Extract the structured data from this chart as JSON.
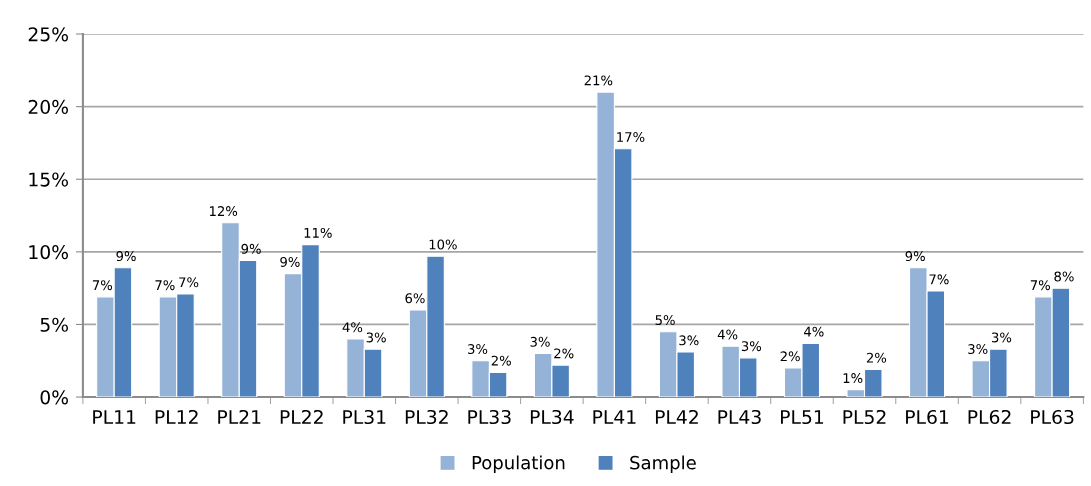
{
  "chart_data": {
    "type": "bar",
    "categories": [
      "PL11",
      "PL12",
      "PL21",
      "PL22",
      "PL31",
      "PL32",
      "PL33",
      "PL34",
      "PL41",
      "PL42",
      "PL43",
      "PL51",
      "PL52",
      "PL61",
      "PL62",
      "PL63"
    ],
    "series": [
      {
        "name": "Population",
        "color": "#95b3d7",
        "values": [
          6.9,
          6.9,
          12.0,
          8.5,
          4.0,
          6.0,
          2.5,
          3.0,
          21.0,
          4.5,
          3.5,
          2.0,
          0.5,
          8.9,
          2.5,
          6.9
        ],
        "value_labels": [
          "7%",
          "7%",
          "12%",
          "9%",
          "4%",
          "6%",
          "3%",
          "3%",
          "21%",
          "5%",
          "4%",
          "2%",
          "1%",
          "9%",
          "3%",
          "7%"
        ]
      },
      {
        "name": "Sample",
        "color": "#4f81bd",
        "values": [
          8.9,
          7.1,
          9.4,
          10.5,
          3.3,
          9.7,
          1.7,
          2.2,
          17.1,
          3.1,
          2.7,
          3.7,
          1.9,
          7.3,
          3.3,
          7.5
        ],
        "value_labels": [
          "9%",
          "7%",
          "9%",
          "11%",
          "3%",
          "10%",
          "2%",
          "2%",
          "17%",
          "3%",
          "3%",
          "4%",
          "2%",
          "7%",
          "3%",
          "8%"
        ]
      }
    ],
    "ylim": [
      0,
      25
    ],
    "yticks": [
      {
        "value": 0,
        "label": "0%"
      },
      {
        "value": 5,
        "label": "5%"
      },
      {
        "value": 10,
        "label": "10%"
      },
      {
        "value": 15,
        "label": "15%"
      },
      {
        "value": 20,
        "label": "20%"
      },
      {
        "value": 25,
        "label": "25%"
      }
    ],
    "grid": "y",
    "legend": "bottom"
  }
}
